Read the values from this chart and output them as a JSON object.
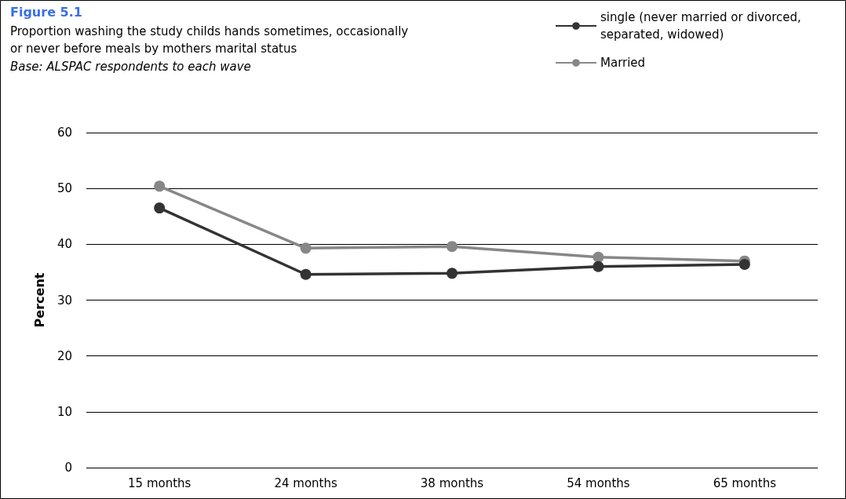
{
  "chart_data": {
    "type": "line",
    "title": "Figure 5.1",
    "subtitle": "Proportion washing the study childs hands sometimes, occasionally\nor never before meals by mothers marital status",
    "annotations": [
      "Base: ALSPAC respondents to each wave"
    ],
    "ylabel": "Percent",
    "categories": [
      "15 months",
      "24 months",
      "38 months",
      "54 months",
      "65 months"
    ],
    "series": [
      {
        "name": "single (never married or divorced, separated, widowed)",
        "color": "#333333",
        "values": [
          46.5,
          34.6,
          34.8,
          36.0,
          36.4
        ]
      },
      {
        "name": "Married",
        "color": "#878787",
        "values": [
          50.4,
          39.3,
          39.6,
          37.7,
          37.0
        ]
      }
    ],
    "ylim": [
      0,
      60
    ],
    "yticks": [
      0,
      10,
      20,
      30,
      40,
      50,
      60
    ],
    "grid": "y",
    "legend": "top right",
    "marker": "circle",
    "line_style": "solid"
  }
}
